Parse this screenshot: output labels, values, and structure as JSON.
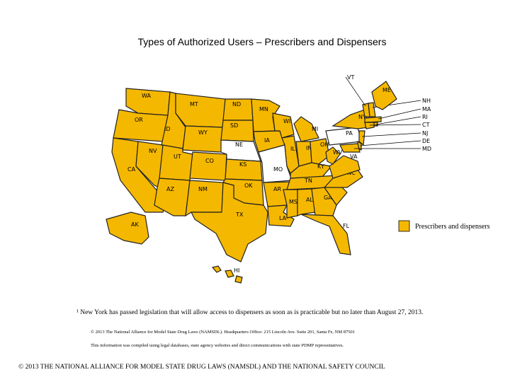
{
  "title": "Types of Authorized Users – Prescribers and Dispensers",
  "states": [
    {
      "label": "WA",
      "color": "#f5b800"
    },
    {
      "label": "OR",
      "color": "#f5b800"
    },
    {
      "label": "CA",
      "color": "#f5b800"
    },
    {
      "label": "NV",
      "color": "#f5b800"
    },
    {
      "label": "ID",
      "color": "#f5b800"
    },
    {
      "label": "MT",
      "color": "#f5b800"
    },
    {
      "label": "WY",
      "color": "#f5b800"
    },
    {
      "label": "UT",
      "color": "#f5b800"
    },
    {
      "label": "AZ",
      "color": "#f5b800"
    },
    {
      "label": "CO",
      "color": "#f5b800"
    },
    {
      "label": "NM",
      "color": "#f5b800"
    },
    {
      "label": "ND",
      "color": "#f5b800"
    },
    {
      "label": "SD",
      "color": "#f5b800"
    },
    {
      "label": "NE",
      "color": "#ffffff"
    },
    {
      "label": "KS",
      "color": "#f5b800"
    },
    {
      "label": "OK",
      "color": "#f5b800"
    },
    {
      "label": "TX",
      "color": "#f5b800"
    },
    {
      "label": "MN",
      "color": "#f5b800"
    },
    {
      "label": "IA",
      "color": "#f5b800"
    },
    {
      "label": "MO",
      "color": "#ffffff"
    },
    {
      "label": "AR",
      "color": "#f5b800"
    },
    {
      "label": "LA",
      "color": "#f5b800"
    },
    {
      "label": "WI",
      "color": "#f5b800"
    },
    {
      "label": "IL",
      "color": "#f5b800"
    },
    {
      "label": "MI",
      "color": "#f5b800"
    },
    {
      "label": "IN",
      "color": "#f5b800"
    },
    {
      "label": "OH",
      "color": "#f5b800"
    },
    {
      "label": "KY",
      "color": "#f5b800"
    },
    {
      "label": "TN",
      "color": "#f5b800"
    },
    {
      "label": "MS",
      "color": "#f5b800"
    },
    {
      "label": "AL",
      "color": "#f5b800"
    },
    {
      "label": "GA",
      "color": "#f5b800"
    },
    {
      "label": "FL",
      "color": "#f5b800"
    },
    {
      "label": "SC",
      "color": "#f5b800"
    },
    {
      "label": "NC",
      "color": "#f5b800"
    },
    {
      "label": "VA",
      "color": "#f5b800"
    },
    {
      "label": "WV",
      "color": "#f5b800"
    },
    {
      "label": "PA",
      "color": "#ffffff"
    },
    {
      "label": "NY¹",
      "color": "#f5b800"
    },
    {
      "label": "VT",
      "color": "#f5b800"
    },
    {
      "label": "NH",
      "color": "#f5b800"
    },
    {
      "label": "ME",
      "color": "#f5b800"
    },
    {
      "label": "MA",
      "color": "#f5b800"
    },
    {
      "label": "RI",
      "color": "#f5b800"
    },
    {
      "label": "CT",
      "color": "#f5b800"
    },
    {
      "label": "NJ",
      "color": "#f5b800"
    },
    {
      "label": "DE",
      "color": "#f5b800"
    },
    {
      "label": "MD",
      "color": "#f5b800"
    },
    {
      "label": "AK",
      "color": "#f5b800"
    },
    {
      "label": "HI",
      "color": "#f5b800"
    }
  ],
  "legend": {
    "label": "Prescribers and dispensers",
    "color": "#f5b800"
  },
  "footnote": "¹ New York has passed legislation that will allow access to dispensers as soon as is practicable but no later than August 27, 2013.",
  "notes": [
    "© 2013 The National Alliance for Model State Drug Laws (NAMSDL). Headquarters Office: 215 Lincoln Ave. Suite 201, Santa Fe, NM 87501",
    "This information was compiled using legal databases, state agency websites and direct communications with state PDMP representatives."
  ],
  "footer": "© 2013 THE NATIONAL ALLIANCE FOR MODEL STATE DRUG LAWS (NAMSDL) AND THE NATIONAL SAFETY COUNCIL"
}
